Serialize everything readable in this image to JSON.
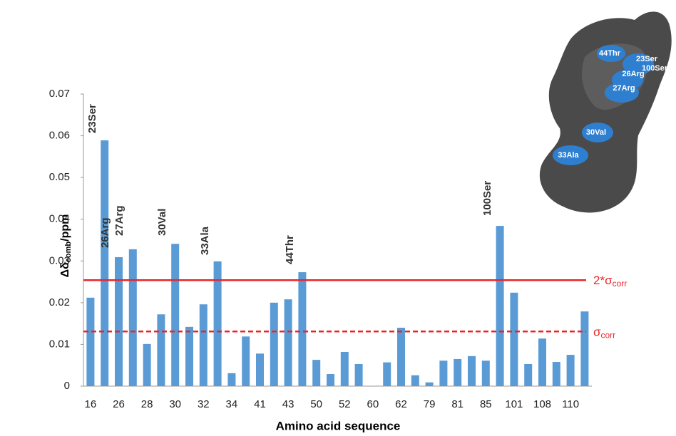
{
  "chart_data": {
    "type": "bar",
    "x_label": "Amino acid sequence",
    "y_label": {
      "main": "Δδ",
      "subscript": "comb",
      "suffix": "/ppm"
    },
    "categories": [
      "16",
      null,
      "26",
      null,
      "28",
      null,
      "30",
      null,
      "32",
      null,
      "34",
      null,
      "41",
      null,
      "43",
      null,
      "50",
      null,
      "52",
      null,
      "60",
      null,
      "62",
      null,
      "79",
      null,
      "81",
      null,
      "85",
      null,
      "101",
      null,
      "108",
      null,
      "110",
      null
    ],
    "values": [
      0.0212,
      0.0589,
      0.0309,
      0.0328,
      0.0101,
      0.0172,
      0.0341,
      0.0142,
      0.0196,
      0.0299,
      0.0031,
      0.0119,
      0.0078,
      0.02,
      0.0208,
      0.0273,
      0.0063,
      0.0029,
      0.0082,
      0.0053,
      0,
      0.0057,
      0.014,
      0.0026,
      0.0009,
      0.0061,
      0.0065,
      0.0072,
      0.0061,
      0.0384,
      0.0224,
      0.0053,
      0.0114,
      0.0058,
      0.0075,
      0.0179
    ],
    "color": "#5b9bd5",
    "ylim": [
      0,
      0.07
    ],
    "yticks": [
      0,
      0.01,
      0.02,
      0.03,
      0.04,
      0.05,
      0.06,
      0.07
    ],
    "annotations": [
      "23Ser",
      "26Arg",
      "27Arg",
      "30Val",
      "33Ala",
      "44Thr",
      "100Ser"
    ],
    "reference_lines": [
      {
        "label": "2*σ",
        "subscript": "corr",
        "value": 0.0254,
        "style": "solid",
        "color": "#e8262a"
      },
      {
        "label": "σ",
        "subscript": "corr",
        "value": 0.0131,
        "style": "dashed",
        "color": "#e8262a"
      }
    ],
    "image_labels": [
      "44Thr",
      "23Ser",
      "100Ser",
      "26Arg",
      "27Arg",
      "30Val",
      "33Ala"
    ]
  }
}
